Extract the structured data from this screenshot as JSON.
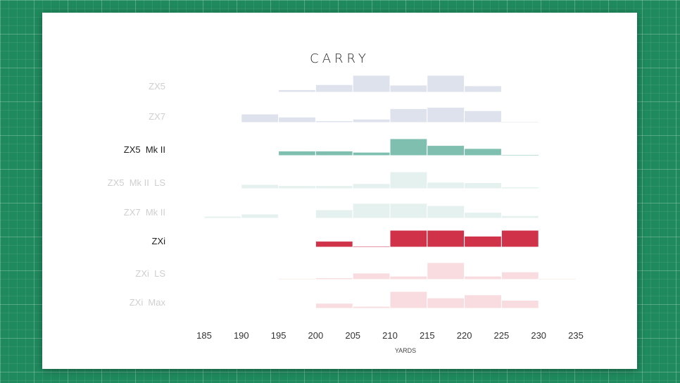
{
  "chart_data": {
    "type": "histogram",
    "title": "CARRY",
    "xlabel": "YARDS",
    "x_ticks": [
      185,
      190,
      195,
      200,
      205,
      210,
      215,
      220,
      225,
      230,
      235
    ],
    "xlim": [
      185,
      235
    ],
    "bin_width": 5,
    "series": [
      {
        "name": "ZX5",
        "highlighted": false,
        "color": "#dde2ec",
        "bins": [
          {
            "x": 195,
            "v": 0.15
          },
          {
            "x": 200,
            "v": 0.45
          },
          {
            "x": 205,
            "v": 1.0
          },
          {
            "x": 210,
            "v": 0.42
          },
          {
            "x": 215,
            "v": 1.0
          },
          {
            "x": 220,
            "v": 0.38
          }
        ]
      },
      {
        "name": "ZX7",
        "highlighted": false,
        "color": "#dde2ec",
        "bins": [
          {
            "x": 190,
            "v": 0.5
          },
          {
            "x": 195,
            "v": 0.32
          },
          {
            "x": 200,
            "v": 0.1
          },
          {
            "x": 205,
            "v": 0.2
          },
          {
            "x": 210,
            "v": 0.82
          },
          {
            "x": 215,
            "v": 0.9
          },
          {
            "x": 220,
            "v": 0.7
          },
          {
            "x": 225,
            "v": 0.05
          }
        ]
      },
      {
        "name": "ZX5  Mk II",
        "highlighted": true,
        "color": "#7fbfb0",
        "bins": [
          {
            "x": 195,
            "v": 0.27
          },
          {
            "x": 200,
            "v": 0.27
          },
          {
            "x": 205,
            "v": 0.2
          },
          {
            "x": 210,
            "v": 1.0
          },
          {
            "x": 215,
            "v": 0.6
          },
          {
            "x": 220,
            "v": 0.42
          },
          {
            "x": 225,
            "v": 0.05
          }
        ]
      },
      {
        "name": "ZX5  Mk II  LS",
        "highlighted": false,
        "color": "#e4f1ee",
        "bins": [
          {
            "x": 190,
            "v": 0.25
          },
          {
            "x": 195,
            "v": 0.18
          },
          {
            "x": 200,
            "v": 0.18
          },
          {
            "x": 205,
            "v": 0.3
          },
          {
            "x": 210,
            "v": 1.0
          },
          {
            "x": 215,
            "v": 0.38
          },
          {
            "x": 220,
            "v": 0.35
          },
          {
            "x": 225,
            "v": 0.1
          }
        ]
      },
      {
        "name": "ZX7  Mk II",
        "highlighted": false,
        "color": "#e4f1ee",
        "bins": [
          {
            "x": 185,
            "v": 0.12
          },
          {
            "x": 190,
            "v": 0.25
          },
          {
            "x": 200,
            "v": 0.5
          },
          {
            "x": 205,
            "v": 0.88
          },
          {
            "x": 210,
            "v": 0.88
          },
          {
            "x": 215,
            "v": 0.75
          },
          {
            "x": 220,
            "v": 0.35
          },
          {
            "x": 225,
            "v": 0.15
          }
        ]
      },
      {
        "name": "ZXi",
        "highlighted": true,
        "color": "#d0324a",
        "bins": [
          {
            "x": 200,
            "v": 0.35
          },
          {
            "x": 205,
            "v": 0.05
          },
          {
            "x": 210,
            "v": 1.0
          },
          {
            "x": 215,
            "v": 1.0
          },
          {
            "x": 220,
            "v": 0.65
          },
          {
            "x": 225,
            "v": 1.0
          }
        ]
      },
      {
        "name": "ZXi  LS",
        "highlighted": false,
        "color": "#f8dcdf",
        "bins": [
          {
            "x": 195,
            "v": 0.05
          },
          {
            "x": 200,
            "v": 0.1
          },
          {
            "x": 205,
            "v": 0.38
          },
          {
            "x": 210,
            "v": 0.2
          },
          {
            "x": 215,
            "v": 1.0
          },
          {
            "x": 220,
            "v": 0.2
          },
          {
            "x": 225,
            "v": 0.45
          },
          {
            "x": 230,
            "v": 0.05
          }
        ]
      },
      {
        "name": "ZXi  Max",
        "highlighted": false,
        "color": "#f8dcdf",
        "bins": [
          {
            "x": 200,
            "v": 0.3
          },
          {
            "x": 205,
            "v": 0.12
          },
          {
            "x": 210,
            "v": 1.0
          },
          {
            "x": 215,
            "v": 0.62
          },
          {
            "x": 220,
            "v": 0.8
          },
          {
            "x": 225,
            "v": 0.48
          }
        ]
      }
    ]
  }
}
